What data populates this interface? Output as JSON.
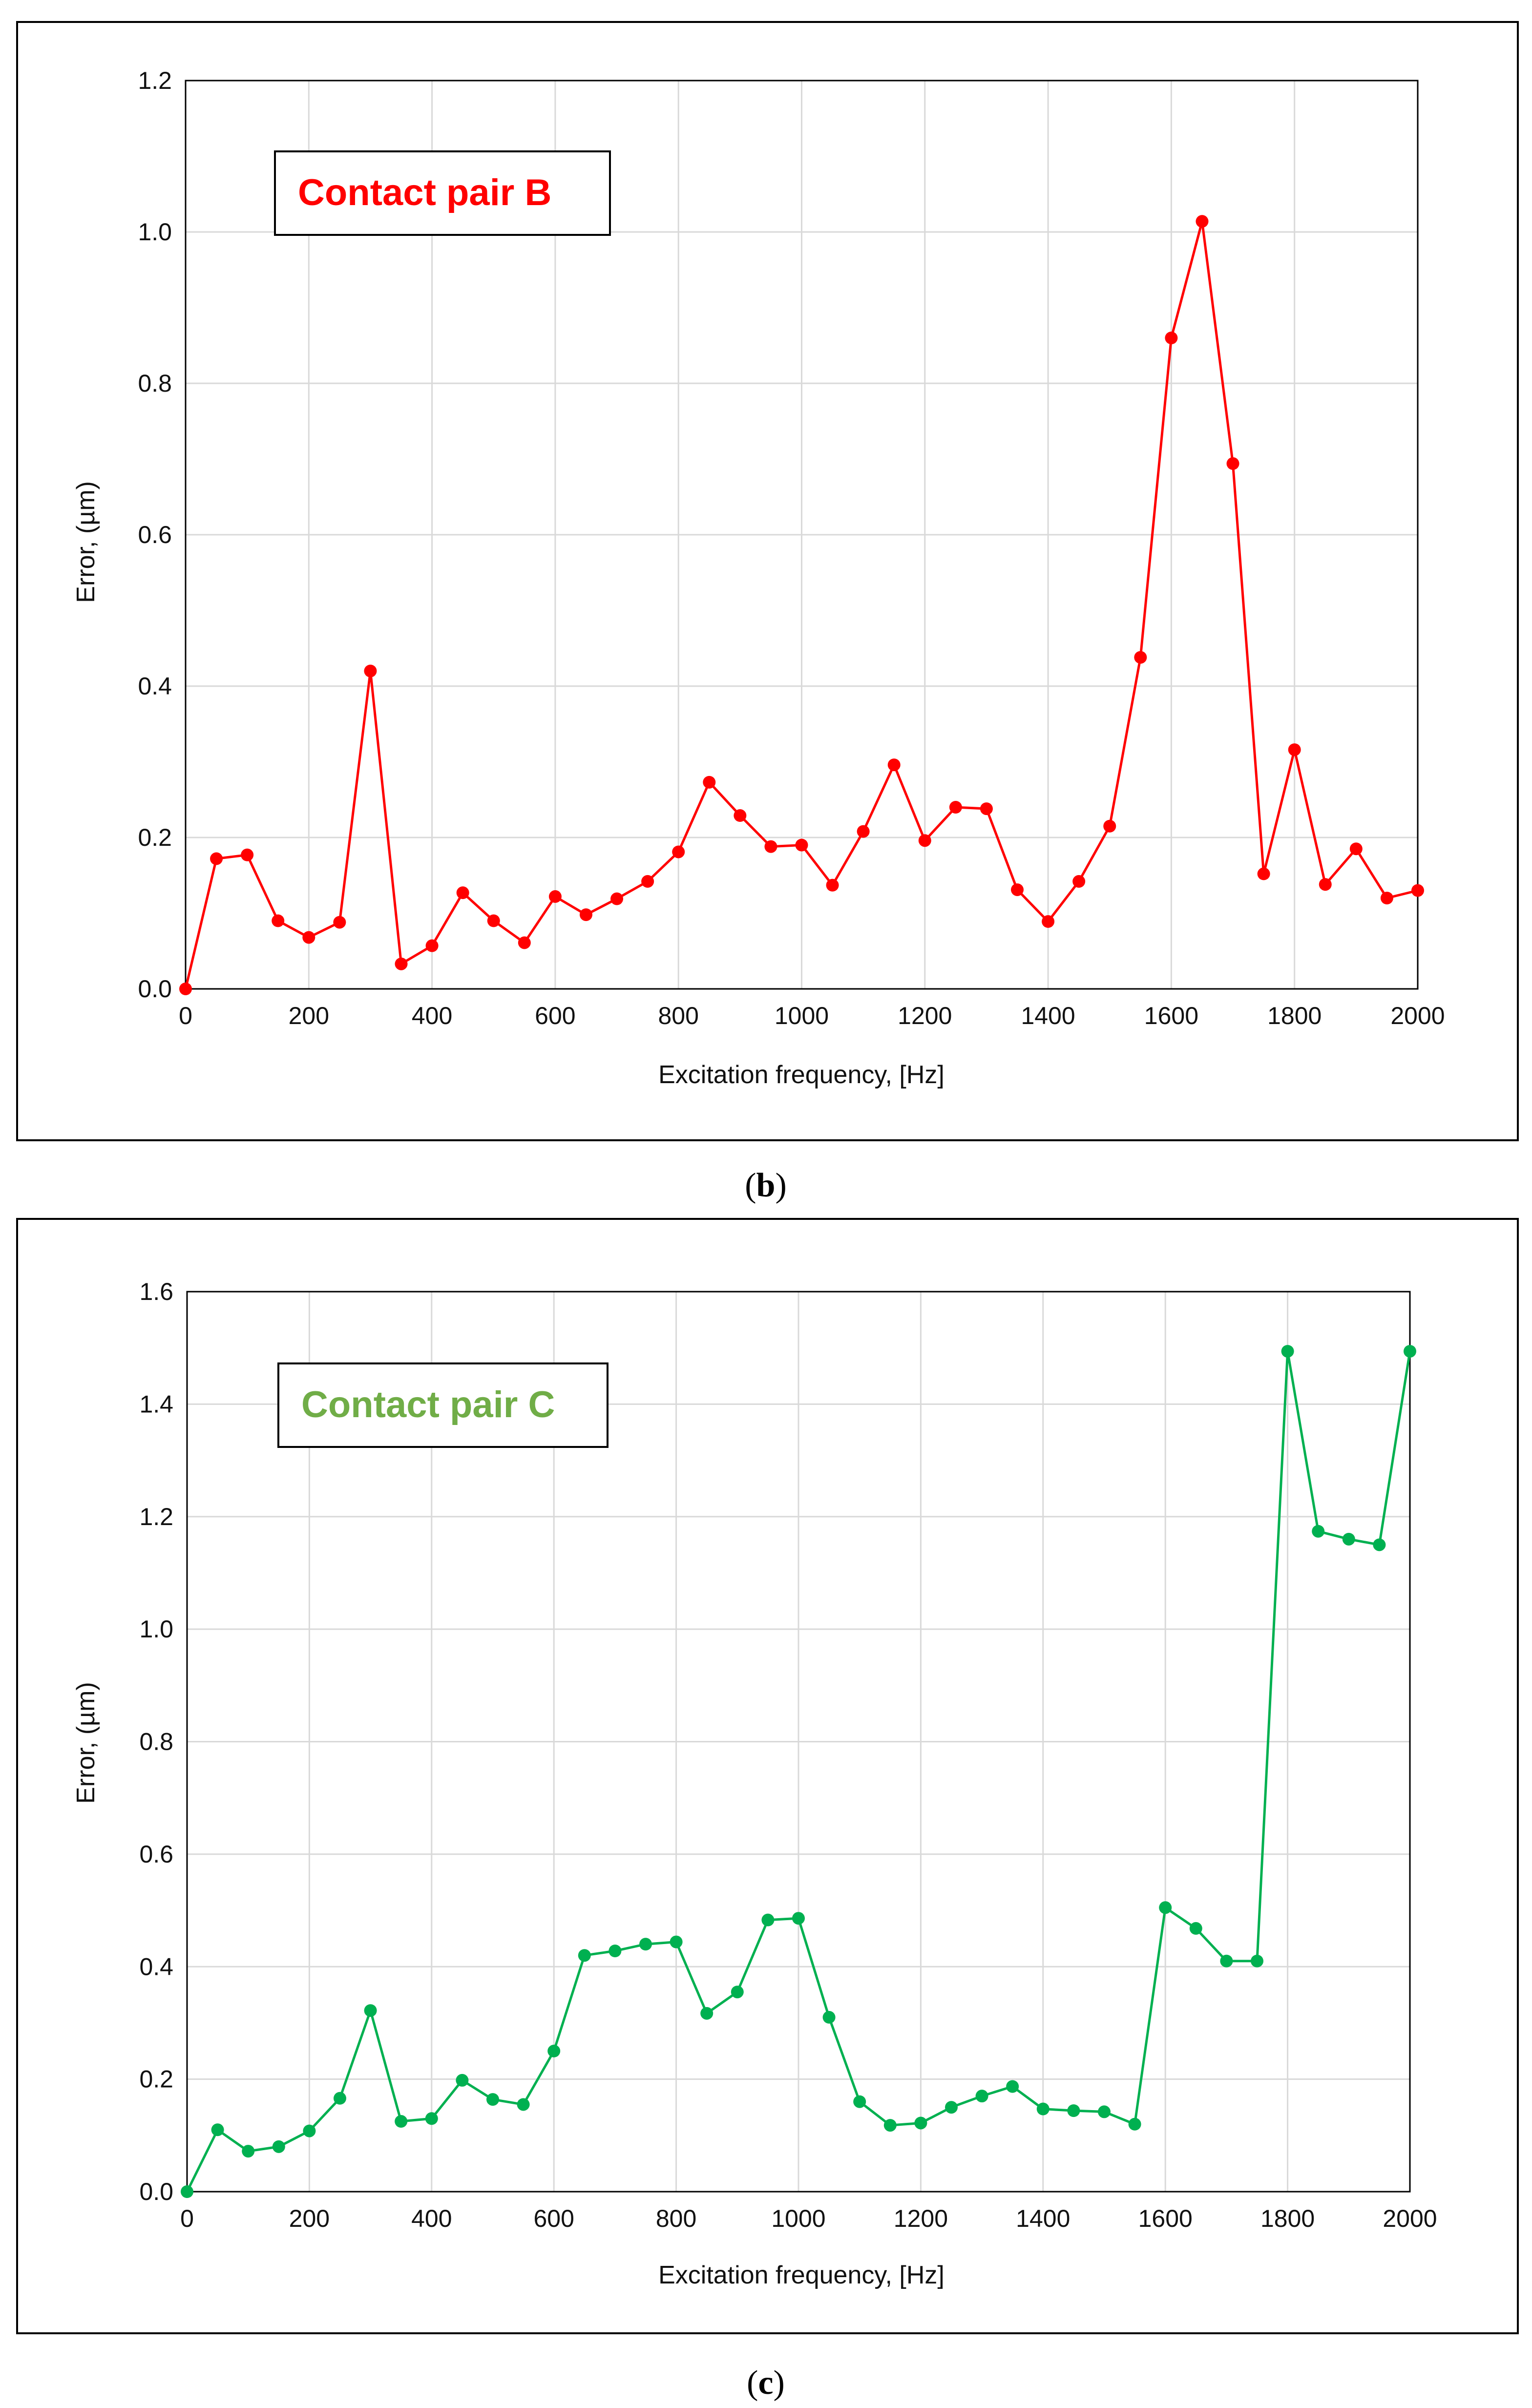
{
  "chart_data": [
    {
      "type": "line",
      "caption_letter": "b",
      "legend_label": "Contact pair B",
      "color": "#ff0000",
      "xlabel": "Excitation frequency, [Hz]",
      "ylabel": "Error, (µm)",
      "xlim": [
        0,
        2000
      ],
      "ylim": [
        0,
        1.2
      ],
      "xticks": [
        "0",
        "200",
        "400",
        "600",
        "800",
        "1000",
        "1200",
        "1400",
        "1600",
        "1800",
        "2000"
      ],
      "yticks": [
        "0.0",
        "0.2",
        "0.4",
        "0.6",
        "0.8",
        "1.0",
        "1.2"
      ],
      "grid": true,
      "series": [
        {
          "name": "Contact pair B",
          "x": [
            0,
            50,
            100,
            150,
            200,
            250,
            300,
            350,
            400,
            450,
            500,
            550,
            600,
            650,
            700,
            750,
            800,
            850,
            900,
            950,
            1000,
            1050,
            1100,
            1150,
            1200,
            1250,
            1300,
            1350,
            1400,
            1450,
            1500,
            1550,
            1600,
            1650,
            1700,
            1750,
            1800,
            1850,
            1900,
            1950,
            2000
          ],
          "y": [
            0.0,
            0.172,
            0.177,
            0.09,
            0.068,
            0.088,
            0.42,
            0.033,
            0.057,
            0.127,
            0.09,
            0.061,
            0.122,
            0.098,
            0.119,
            0.142,
            0.181,
            0.273,
            0.229,
            0.188,
            0.19,
            0.137,
            0.208,
            0.296,
            0.196,
            0.24,
            0.238,
            0.131,
            0.089,
            0.142,
            0.215,
            0.438,
            0.86,
            1.014,
            0.694,
            0.152,
            0.316,
            0.138,
            0.185,
            0.12,
            0.13
          ]
        }
      ]
    },
    {
      "type": "line",
      "caption_letter": "c",
      "legend_label": "Contact pair C",
      "color": "#00b050",
      "legend_color": "#70ad47",
      "xlabel": "Excitation frequency, [Hz]",
      "ylabel": "Error, (µm)",
      "xlim": [
        0,
        2000
      ],
      "ylim": [
        0,
        1.6
      ],
      "xticks": [
        "0",
        "200",
        "400",
        "600",
        "800",
        "1000",
        "1200",
        "1400",
        "1600",
        "1800",
        "2000"
      ],
      "yticks": [
        "0.0",
        "0.2",
        "0.4",
        "0.6",
        "0.8",
        "1.0",
        "1.2",
        "1.4",
        "1.6"
      ],
      "grid": true,
      "series": [
        {
          "name": "Contact pair C",
          "x": [
            0,
            50,
            100,
            150,
            200,
            250,
            300,
            350,
            400,
            450,
            500,
            550,
            600,
            650,
            700,
            750,
            800,
            850,
            900,
            950,
            1000,
            1050,
            1100,
            1150,
            1200,
            1250,
            1300,
            1350,
            1400,
            1450,
            1500,
            1550,
            1600,
            1650,
            1700,
            1750,
            1800,
            1850,
            1900,
            1950,
            2000
          ],
          "y": [
            0.0,
            0.11,
            0.072,
            0.08,
            0.108,
            0.166,
            0.322,
            0.125,
            0.13,
            0.198,
            0.164,
            0.155,
            0.25,
            0.42,
            0.428,
            0.44,
            0.444,
            0.317,
            0.355,
            0.483,
            0.486,
            0.31,
            0.16,
            0.118,
            0.122,
            0.15,
            0.17,
            0.187,
            0.147,
            0.144,
            0.142,
            0.12,
            0.505,
            0.468,
            0.41,
            0.41,
            1.494,
            1.174,
            1.16,
            1.15,
            1.494
          ]
        }
      ]
    }
  ]
}
